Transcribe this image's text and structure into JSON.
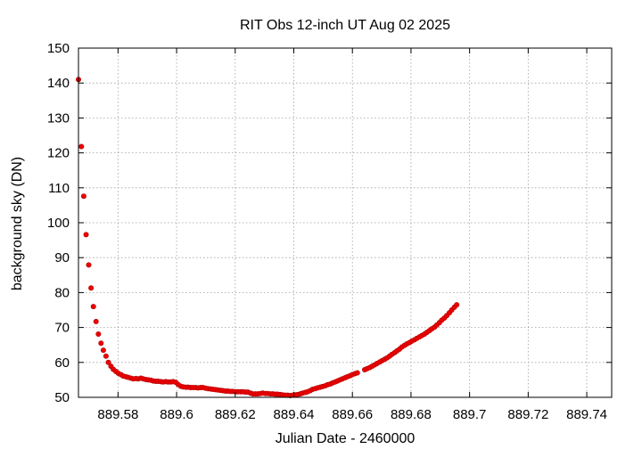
{
  "chart_data": {
    "type": "scatter",
    "title": "RIT Obs 12-inch UT Aug 02 2025",
    "xlabel": "Julian Date - 2460000",
    "ylabel": "background sky (DN)",
    "xlim": [
      889.5665,
      889.7485
    ],
    "ylim": [
      50,
      150
    ],
    "xticks": [
      889.58,
      889.6,
      889.62,
      889.64,
      889.66,
      889.68,
      889.7,
      889.72,
      889.74
    ],
    "xtick_labels": [
      "889.58",
      "889.6",
      "889.62",
      "889.64",
      "889.66",
      "889.68",
      "889.7",
      "889.72",
      "889.74"
    ],
    "yticks": [
      50,
      60,
      70,
      80,
      90,
      100,
      110,
      120,
      130,
      140,
      150
    ],
    "ytick_labels": [
      "50",
      "60",
      "70",
      "80",
      "90",
      "100",
      "110",
      "120",
      "130",
      "140",
      "150"
    ],
    "grid": true,
    "color": "#ee0000",
    "points": [
      [
        889.5665,
        141.0
      ],
      [
        889.5675,
        121.8
      ],
      [
        889.5683,
        107.6
      ],
      [
        889.5691,
        96.6
      ],
      [
        889.57,
        87.9
      ],
      [
        889.5708,
        81.3
      ],
      [
        889.5716,
        76.0
      ],
      [
        889.5725,
        71.7
      ],
      [
        889.5733,
        68.1
      ],
      [
        889.5742,
        65.5
      ],
      [
        889.575,
        63.5
      ],
      [
        889.5759,
        61.8
      ],
      [
        889.5767,
        60.0
      ],
      [
        889.5776,
        58.9
      ],
      [
        889.5784,
        58.0
      ],
      [
        889.5793,
        57.4
      ],
      [
        889.5801,
        56.9
      ],
      [
        889.581,
        56.5
      ],
      [
        889.5818,
        56.1
      ],
      [
        889.5827,
        55.9
      ],
      [
        889.5835,
        55.7
      ],
      [
        889.5844,
        55.5
      ],
      [
        889.5852,
        55.3
      ],
      [
        889.5861,
        55.4
      ],
      [
        889.5869,
        55.3
      ],
      [
        889.5878,
        55.5
      ],
      [
        889.5886,
        55.3
      ],
      [
        889.5895,
        55.1
      ],
      [
        889.5903,
        55.0
      ],
      [
        889.5912,
        54.9
      ],
      [
        889.592,
        54.7
      ],
      [
        889.5929,
        54.6
      ],
      [
        889.5937,
        54.6
      ],
      [
        889.5946,
        54.5
      ],
      [
        889.5954,
        54.4
      ],
      [
        889.5963,
        54.5
      ],
      [
        889.5971,
        54.4
      ],
      [
        889.598,
        54.4
      ],
      [
        889.5988,
        54.5
      ],
      [
        889.5997,
        54.3
      ],
      [
        889.6005,
        53.7
      ],
      [
        889.6014,
        53.2
      ],
      [
        889.6022,
        53.0
      ],
      [
        889.6031,
        52.9
      ],
      [
        889.6039,
        52.9
      ],
      [
        889.6048,
        52.8
      ],
      [
        889.6056,
        52.8
      ],
      [
        889.6065,
        52.8
      ],
      [
        889.6073,
        52.7
      ],
      [
        889.6082,
        52.8
      ],
      [
        889.609,
        52.8
      ],
      [
        889.6099,
        52.6
      ],
      [
        889.6107,
        52.5
      ],
      [
        889.6116,
        52.4
      ],
      [
        889.6124,
        52.3
      ],
      [
        889.6133,
        52.2
      ],
      [
        889.6141,
        52.1
      ],
      [
        889.615,
        52.0
      ],
      [
        889.6158,
        51.9
      ],
      [
        889.6167,
        51.8
      ],
      [
        889.6175,
        51.8
      ],
      [
        889.6184,
        51.7
      ],
      [
        889.6192,
        51.7
      ],
      [
        889.6201,
        51.6
      ],
      [
        889.6209,
        51.6
      ],
      [
        889.6218,
        51.6
      ],
      [
        889.6226,
        51.6
      ],
      [
        889.6235,
        51.5
      ],
      [
        889.6243,
        51.5
      ],
      [
        889.6252,
        51.2
      ],
      [
        889.626,
        51.0
      ],
      [
        889.6269,
        51.0
      ],
      [
        889.6277,
        51.0
      ],
      [
        889.6286,
        51.1
      ],
      [
        889.6294,
        51.2
      ],
      [
        889.6303,
        51.1
      ],
      [
        889.6311,
        51.1
      ],
      [
        889.632,
        51.0
      ],
      [
        889.6328,
        51.0
      ],
      [
        889.6337,
        50.9
      ],
      [
        889.6345,
        50.9
      ],
      [
        889.6354,
        50.8
      ],
      [
        889.6362,
        50.7
      ],
      [
        889.6371,
        50.6
      ],
      [
        889.6379,
        50.6
      ],
      [
        889.6388,
        50.5
      ],
      [
        889.6396,
        50.6
      ],
      [
        889.6405,
        50.7
      ],
      [
        889.6413,
        50.8
      ],
      [
        889.6422,
        51.0
      ],
      [
        889.643,
        51.2
      ],
      [
        889.6439,
        51.4
      ],
      [
        889.6447,
        51.6
      ],
      [
        889.6456,
        51.9
      ],
      [
        889.6464,
        52.3
      ],
      [
        889.6473,
        52.5
      ],
      [
        889.6481,
        52.7
      ],
      [
        889.649,
        52.9
      ],
      [
        889.6498,
        53.1
      ],
      [
        889.6507,
        53.3
      ],
      [
        889.6515,
        53.6
      ],
      [
        889.6524,
        53.8
      ],
      [
        889.6532,
        54.1
      ],
      [
        889.6541,
        54.4
      ],
      [
        889.6549,
        54.7
      ],
      [
        889.6558,
        55.0
      ],
      [
        889.6566,
        55.3
      ],
      [
        889.6575,
        55.6
      ],
      [
        889.6583,
        55.9
      ],
      [
        889.6592,
        56.2
      ],
      [
        889.66,
        56.5
      ],
      [
        889.6609,
        56.8
      ],
      [
        889.6617,
        57.0
      ],
      [
        889.6642,
        57.9
      ],
      [
        889.665,
        58.2
      ],
      [
        889.6659,
        58.5
      ],
      [
        889.6667,
        58.9
      ],
      [
        889.6676,
        59.3
      ],
      [
        889.6684,
        59.7
      ],
      [
        889.6693,
        60.1
      ],
      [
        889.6701,
        60.5
      ],
      [
        889.671,
        60.9
      ],
      [
        889.6718,
        61.3
      ],
      [
        889.6727,
        61.8
      ],
      [
        889.6735,
        62.3
      ],
      [
        889.6744,
        62.8
      ],
      [
        889.6752,
        63.3
      ],
      [
        889.6761,
        63.8
      ],
      [
        889.6769,
        64.4
      ],
      [
        889.6778,
        64.9
      ],
      [
        889.6786,
        65.3
      ],
      [
        889.6795,
        65.7
      ],
      [
        889.6803,
        66.1
      ],
      [
        889.6812,
        66.5
      ],
      [
        889.682,
        66.9
      ],
      [
        889.6829,
        67.3
      ],
      [
        889.6837,
        67.7
      ],
      [
        889.6846,
        68.1
      ],
      [
        889.6854,
        68.6
      ],
      [
        889.6863,
        69.1
      ],
      [
        889.6871,
        69.6
      ],
      [
        889.688,
        70.1
      ],
      [
        889.6888,
        70.7
      ],
      [
        889.6897,
        71.4
      ],
      [
        889.6905,
        72.1
      ],
      [
        889.6914,
        72.7
      ],
      [
        889.6922,
        73.4
      ],
      [
        889.6931,
        74.2
      ],
      [
        889.6939,
        75.0
      ],
      [
        889.6948,
        75.8
      ],
      [
        889.6956,
        76.5
      ]
    ]
  }
}
